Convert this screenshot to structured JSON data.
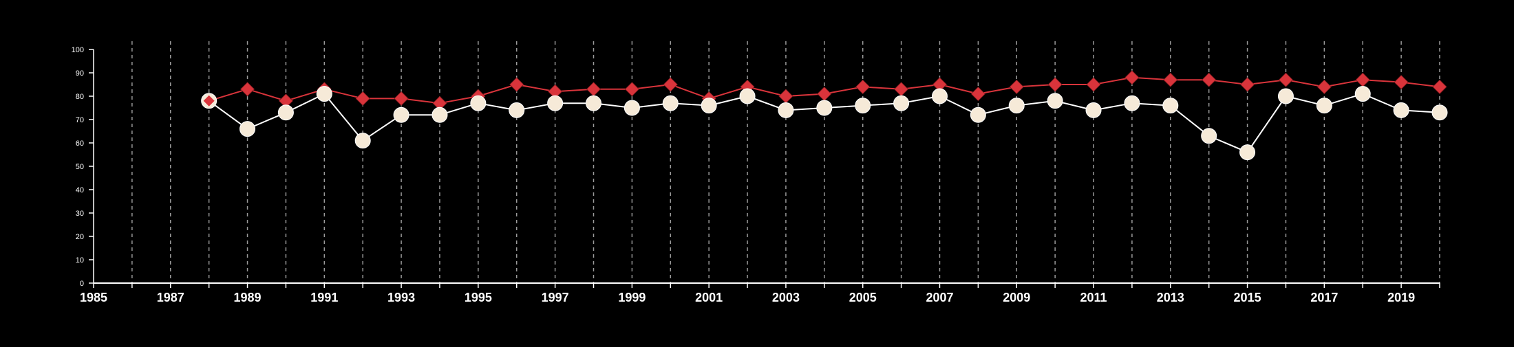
{
  "chart_data": {
    "type": "line",
    "title": "",
    "xlabel": "",
    "ylabel": "",
    "xlim": [
      1985,
      2020
    ],
    "ylim": [
      0,
      100
    ],
    "y_ticks": [
      0,
      10,
      20,
      30,
      40,
      50,
      60,
      70,
      80,
      90,
      100
    ],
    "x_tick_labels": [
      "1985",
      "1987",
      "1989",
      "1991",
      "1993",
      "1995",
      "1997",
      "1999",
      "2001",
      "2003",
      "2005",
      "2007",
      "2009",
      "2011",
      "2013",
      "2015",
      "2017",
      "2019"
    ],
    "grid": "vertical dashed lines at every year",
    "colors": {
      "background": "#000000",
      "axis": "#ffffff",
      "grid": "#9a9a9a",
      "series_red": "#d9343b",
      "series_cream": "#f6ead8",
      "series_cream_line": "#ffffff"
    },
    "x": [
      1988,
      1989,
      1990,
      1991,
      1992,
      1993,
      1994,
      1995,
      1996,
      1997,
      1998,
      1999,
      2000,
      2001,
      2002,
      2003,
      2004,
      2005,
      2006,
      2007,
      2008,
      2009,
      2010,
      2011,
      2012,
      2013,
      2014,
      2015,
      2016,
      2017,
      2018,
      2019,
      2020
    ],
    "series": [
      {
        "marker": "diamond",
        "color": "#d9343b",
        "values": [
          78,
          83,
          78,
          83,
          79,
          79,
          77,
          80,
          85,
          82,
          83,
          83,
          85,
          79,
          84,
          80,
          81,
          84,
          83,
          85,
          81,
          84,
          85,
          85,
          88,
          87,
          87,
          85,
          87,
          84,
          87,
          86,
          84
        ]
      },
      {
        "marker": "circle",
        "color": "#f6ead8",
        "values": [
          78,
          66,
          73,
          81,
          61,
          72,
          72,
          77,
          74,
          77,
          77,
          75,
          77,
          76,
          80,
          74,
          75,
          76,
          77,
          80,
          72,
          76,
          78,
          74,
          77,
          76,
          63,
          56,
          80,
          76,
          81,
          74,
          73
        ]
      }
    ]
  }
}
